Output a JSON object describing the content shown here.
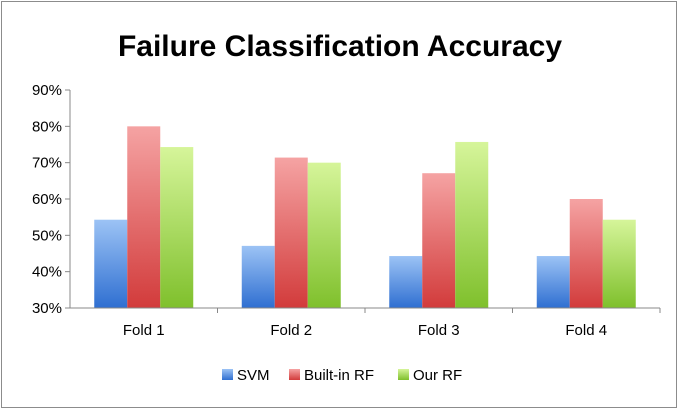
{
  "chart_data": {
    "type": "bar",
    "title": "Failure Classification Accuracy",
    "xlabel": "",
    "ylabel": "",
    "categories": [
      "Fold 1",
      "Fold 2",
      "Fold 3",
      "Fold 4"
    ],
    "series": [
      {
        "name": "SVM",
        "values": [
          54.3,
          47.1,
          44.3,
          44.3
        ],
        "color": "#4f81bd"
      },
      {
        "name": "Built-in RF",
        "values": [
          80.0,
          71.4,
          67.1,
          60.0
        ],
        "color": "#e05a5a"
      },
      {
        "name": "Our RF",
        "values": [
          74.3,
          70.0,
          75.7,
          54.3
        ],
        "color": "#9bd04a"
      }
    ],
    "ylim": [
      30,
      90
    ],
    "yticks": [
      "30%",
      "40%",
      "50%",
      "60%",
      "70%",
      "80%",
      "90%"
    ],
    "ytick_values": [
      30,
      40,
      50,
      60,
      70,
      80,
      90
    ],
    "grid": false,
    "legend": "bottom"
  }
}
